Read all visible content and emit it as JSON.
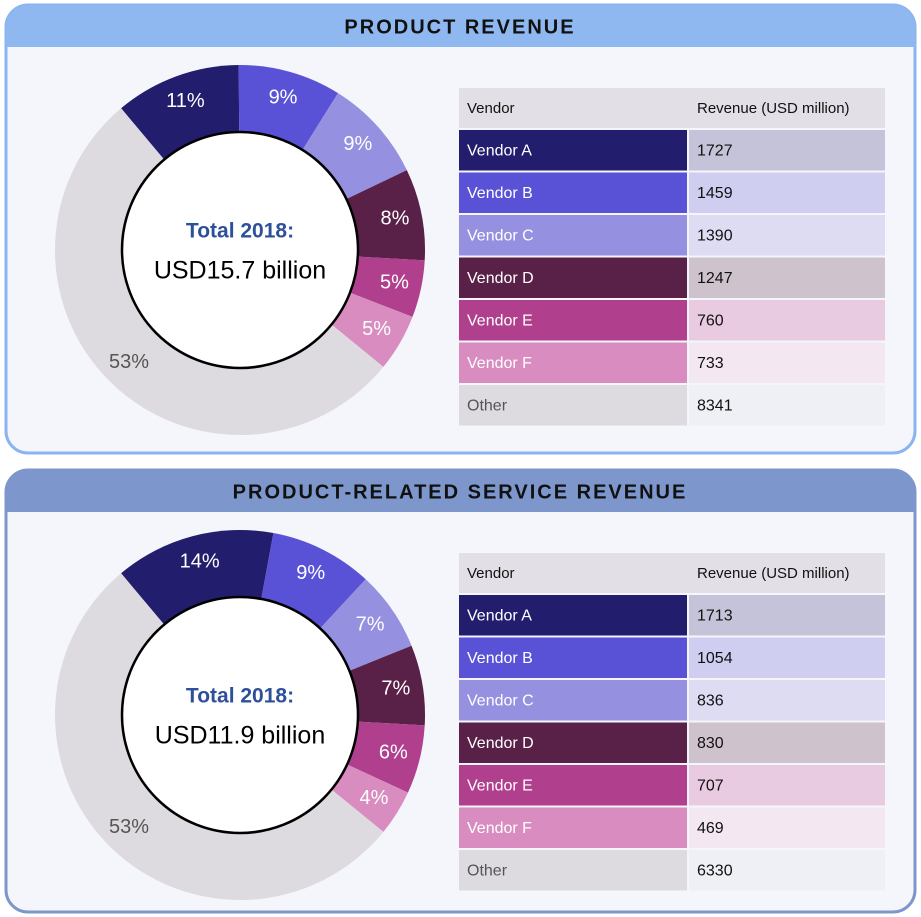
{
  "chart_data": [
    {
      "type": "donut",
      "title": "PRODUCT REVENUE",
      "center_label": "Total 2018:",
      "center_value": "USD15.7 billion",
      "categories": [
        "Vendor A",
        "Vendor B",
        "Vendor C",
        "Vendor D",
        "Vendor E",
        "Vendor F",
        "Other"
      ],
      "values": [
        11,
        9,
        9,
        8,
        5,
        5,
        53
      ],
      "value_labels": [
        "11%",
        "9%",
        "9%",
        "8%",
        "5%",
        "5%",
        "53%"
      ],
      "colors": [
        "#231d6e",
        "#5a52d6",
        "#9590e0",
        "#5a2148",
        "#b0408e",
        "#d88cc0",
        "#dddbe0"
      ],
      "tint_colors": [
        "#c4c3d9",
        "#cfcdf0",
        "#dddcf3",
        "#cec3cc",
        "#e8cbe1",
        "#f3e8f1",
        "#eef0f5"
      ],
      "table": {
        "columns": [
          "Vendor",
          "Revenue (USD million)"
        ],
        "revenue": [
          1727,
          1459,
          1390,
          1247,
          760,
          733,
          8341
        ]
      }
    },
    {
      "type": "donut",
      "title": "PRODUCT-RELATED SERVICE REVENUE",
      "center_label": "Total 2018:",
      "center_value": "USD11.9 billion",
      "categories": [
        "Vendor A",
        "Vendor B",
        "Vendor C",
        "Vendor D",
        "Vendor E",
        "Vendor F",
        "Other"
      ],
      "values": [
        14,
        9,
        7,
        7,
        6,
        4,
        53
      ],
      "value_labels": [
        "14%",
        "9%",
        "7%",
        "7%",
        "6%",
        "4%",
        "53%"
      ],
      "colors": [
        "#231d6e",
        "#5a52d6",
        "#9590e0",
        "#5a2148",
        "#b0408e",
        "#d88cc0",
        "#dddbe0"
      ],
      "tint_colors": [
        "#c4c3d9",
        "#cfcdf0",
        "#dddcf3",
        "#cec3cc",
        "#e8cbe1",
        "#f3e8f1",
        "#eef0f5"
      ],
      "table": {
        "columns": [
          "Vendor",
          "Revenue (USD million)"
        ],
        "revenue": [
          1713,
          1054,
          836,
          830,
          707,
          469,
          6330
        ]
      }
    }
  ]
}
